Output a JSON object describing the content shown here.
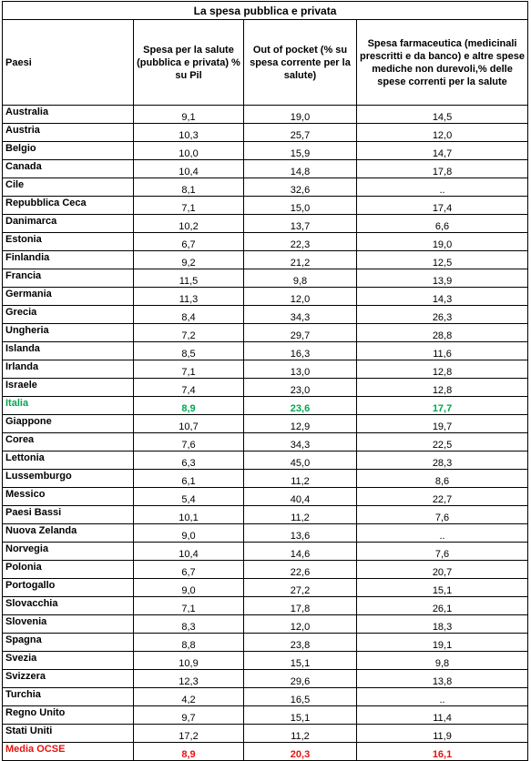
{
  "chart_data": {
    "type": "table",
    "title": "La spesa pubblica e privata",
    "columns": [
      "Paesi",
      "Spesa per la salute (pubblica e privata) % su Pil",
      "Out of pocket (% su spesa corrente per la salute)",
      "Spesa farmaceutica (medicinali prescritti e da banco) e altre spese mediche non durevoli,% delle spese correnti per la salute"
    ],
    "rows": [
      {
        "country": "Australia",
        "health_gdp": "9,1",
        "out_of_pocket": "19,0",
        "pharma": "14,5"
      },
      {
        "country": "Austria",
        "health_gdp": "10,3",
        "out_of_pocket": "25,7",
        "pharma": "12,0"
      },
      {
        "country": "Belgio",
        "health_gdp": "10,0",
        "out_of_pocket": "15,9",
        "pharma": "14,7"
      },
      {
        "country": "Canada",
        "health_gdp": "10,4",
        "out_of_pocket": "14,8",
        "pharma": "17,8"
      },
      {
        "country": "Cile",
        "health_gdp": "8,1",
        "out_of_pocket": "32,6",
        "pharma": ".."
      },
      {
        "country": "Repubblica Ceca",
        "health_gdp": "7,1",
        "out_of_pocket": "15,0",
        "pharma": "17,4"
      },
      {
        "country": "Danimarca",
        "health_gdp": "10,2",
        "out_of_pocket": "13,7",
        "pharma": "6,6"
      },
      {
        "country": "Estonia",
        "health_gdp": "6,7",
        "out_of_pocket": "22,3",
        "pharma": "19,0"
      },
      {
        "country": "Finlandia",
        "health_gdp": "9,2",
        "out_of_pocket": "21,2",
        "pharma": "12,5"
      },
      {
        "country": "Francia",
        "health_gdp": "11,5",
        "out_of_pocket": "9,8",
        "pharma": "13,9"
      },
      {
        "country": "Germania",
        "health_gdp": "11,3",
        "out_of_pocket": "12,0",
        "pharma": "14,3"
      },
      {
        "country": "Grecia",
        "health_gdp": "8,4",
        "out_of_pocket": "34,3",
        "pharma": "26,3"
      },
      {
        "country": "Ungheria",
        "health_gdp": "7,2",
        "out_of_pocket": "29,7",
        "pharma": "28,8"
      },
      {
        "country": "Islanda",
        "health_gdp": "8,5",
        "out_of_pocket": "16,3",
        "pharma": "11,6"
      },
      {
        "country": "Irlanda",
        "health_gdp": "7,1",
        "out_of_pocket": "13,0",
        "pharma": "12,8"
      },
      {
        "country": "Israele",
        "health_gdp": "7,4",
        "out_of_pocket": "23,0",
        "pharma": "12,8"
      },
      {
        "country": "Italia",
        "health_gdp": "8,9",
        "out_of_pocket": "23,6",
        "pharma": "17,7",
        "highlight": "italia"
      },
      {
        "country": "Giappone",
        "health_gdp": "10,7",
        "out_of_pocket": "12,9",
        "pharma": "19,7"
      },
      {
        "country": "Corea",
        "health_gdp": "7,6",
        "out_of_pocket": "34,3",
        "pharma": "22,5"
      },
      {
        "country": "Lettonia",
        "health_gdp": "6,3",
        "out_of_pocket": "45,0",
        "pharma": "28,3"
      },
      {
        "country": "Lussemburgo",
        "health_gdp": "6,1",
        "out_of_pocket": "11,2",
        "pharma": "8,6"
      },
      {
        "country": "Messico",
        "health_gdp": "5,4",
        "out_of_pocket": "40,4",
        "pharma": "22,7"
      },
      {
        "country": "Paesi Bassi",
        "health_gdp": "10,1",
        "out_of_pocket": "11,2",
        "pharma": "7,6"
      },
      {
        "country": "Nuova Zelanda",
        "health_gdp": "9,0",
        "out_of_pocket": "13,6",
        "pharma": ".."
      },
      {
        "country": "Norvegia",
        "health_gdp": "10,4",
        "out_of_pocket": "14,6",
        "pharma": "7,6"
      },
      {
        "country": "Polonia",
        "health_gdp": "6,7",
        "out_of_pocket": "22,6",
        "pharma": "20,7"
      },
      {
        "country": "Portogallo",
        "health_gdp": "9,0",
        "out_of_pocket": "27,2",
        "pharma": "15,1"
      },
      {
        "country": "Slovacchia",
        "health_gdp": "7,1",
        "out_of_pocket": "17,8",
        "pharma": "26,1"
      },
      {
        "country": "Slovenia",
        "health_gdp": "8,3",
        "out_of_pocket": "12,0",
        "pharma": "18,3"
      },
      {
        "country": "Spagna",
        "health_gdp": "8,8",
        "out_of_pocket": "23,8",
        "pharma": "19,1"
      },
      {
        "country": "Svezia",
        "health_gdp": "10,9",
        "out_of_pocket": "15,1",
        "pharma": "9,8"
      },
      {
        "country": "Svizzera",
        "health_gdp": "12,3",
        "out_of_pocket": "29,6",
        "pharma": "13,8"
      },
      {
        "country": "Turchia",
        "health_gdp": "4,2",
        "out_of_pocket": "16,5",
        "pharma": ".."
      },
      {
        "country": "Regno Unito",
        "health_gdp": "9,7",
        "out_of_pocket": "15,1",
        "pharma": "11,4"
      },
      {
        "country": "Stati Uniti",
        "health_gdp": "17,2",
        "out_of_pocket": "11,2",
        "pharma": "11,9"
      },
      {
        "country": "Media OCSE",
        "health_gdp": "8,9",
        "out_of_pocket": "20,3",
        "pharma": "16,1",
        "highlight": "ocse"
      }
    ],
    "colors": {
      "italia": "#00a651",
      "ocse": "#e5130f"
    }
  }
}
